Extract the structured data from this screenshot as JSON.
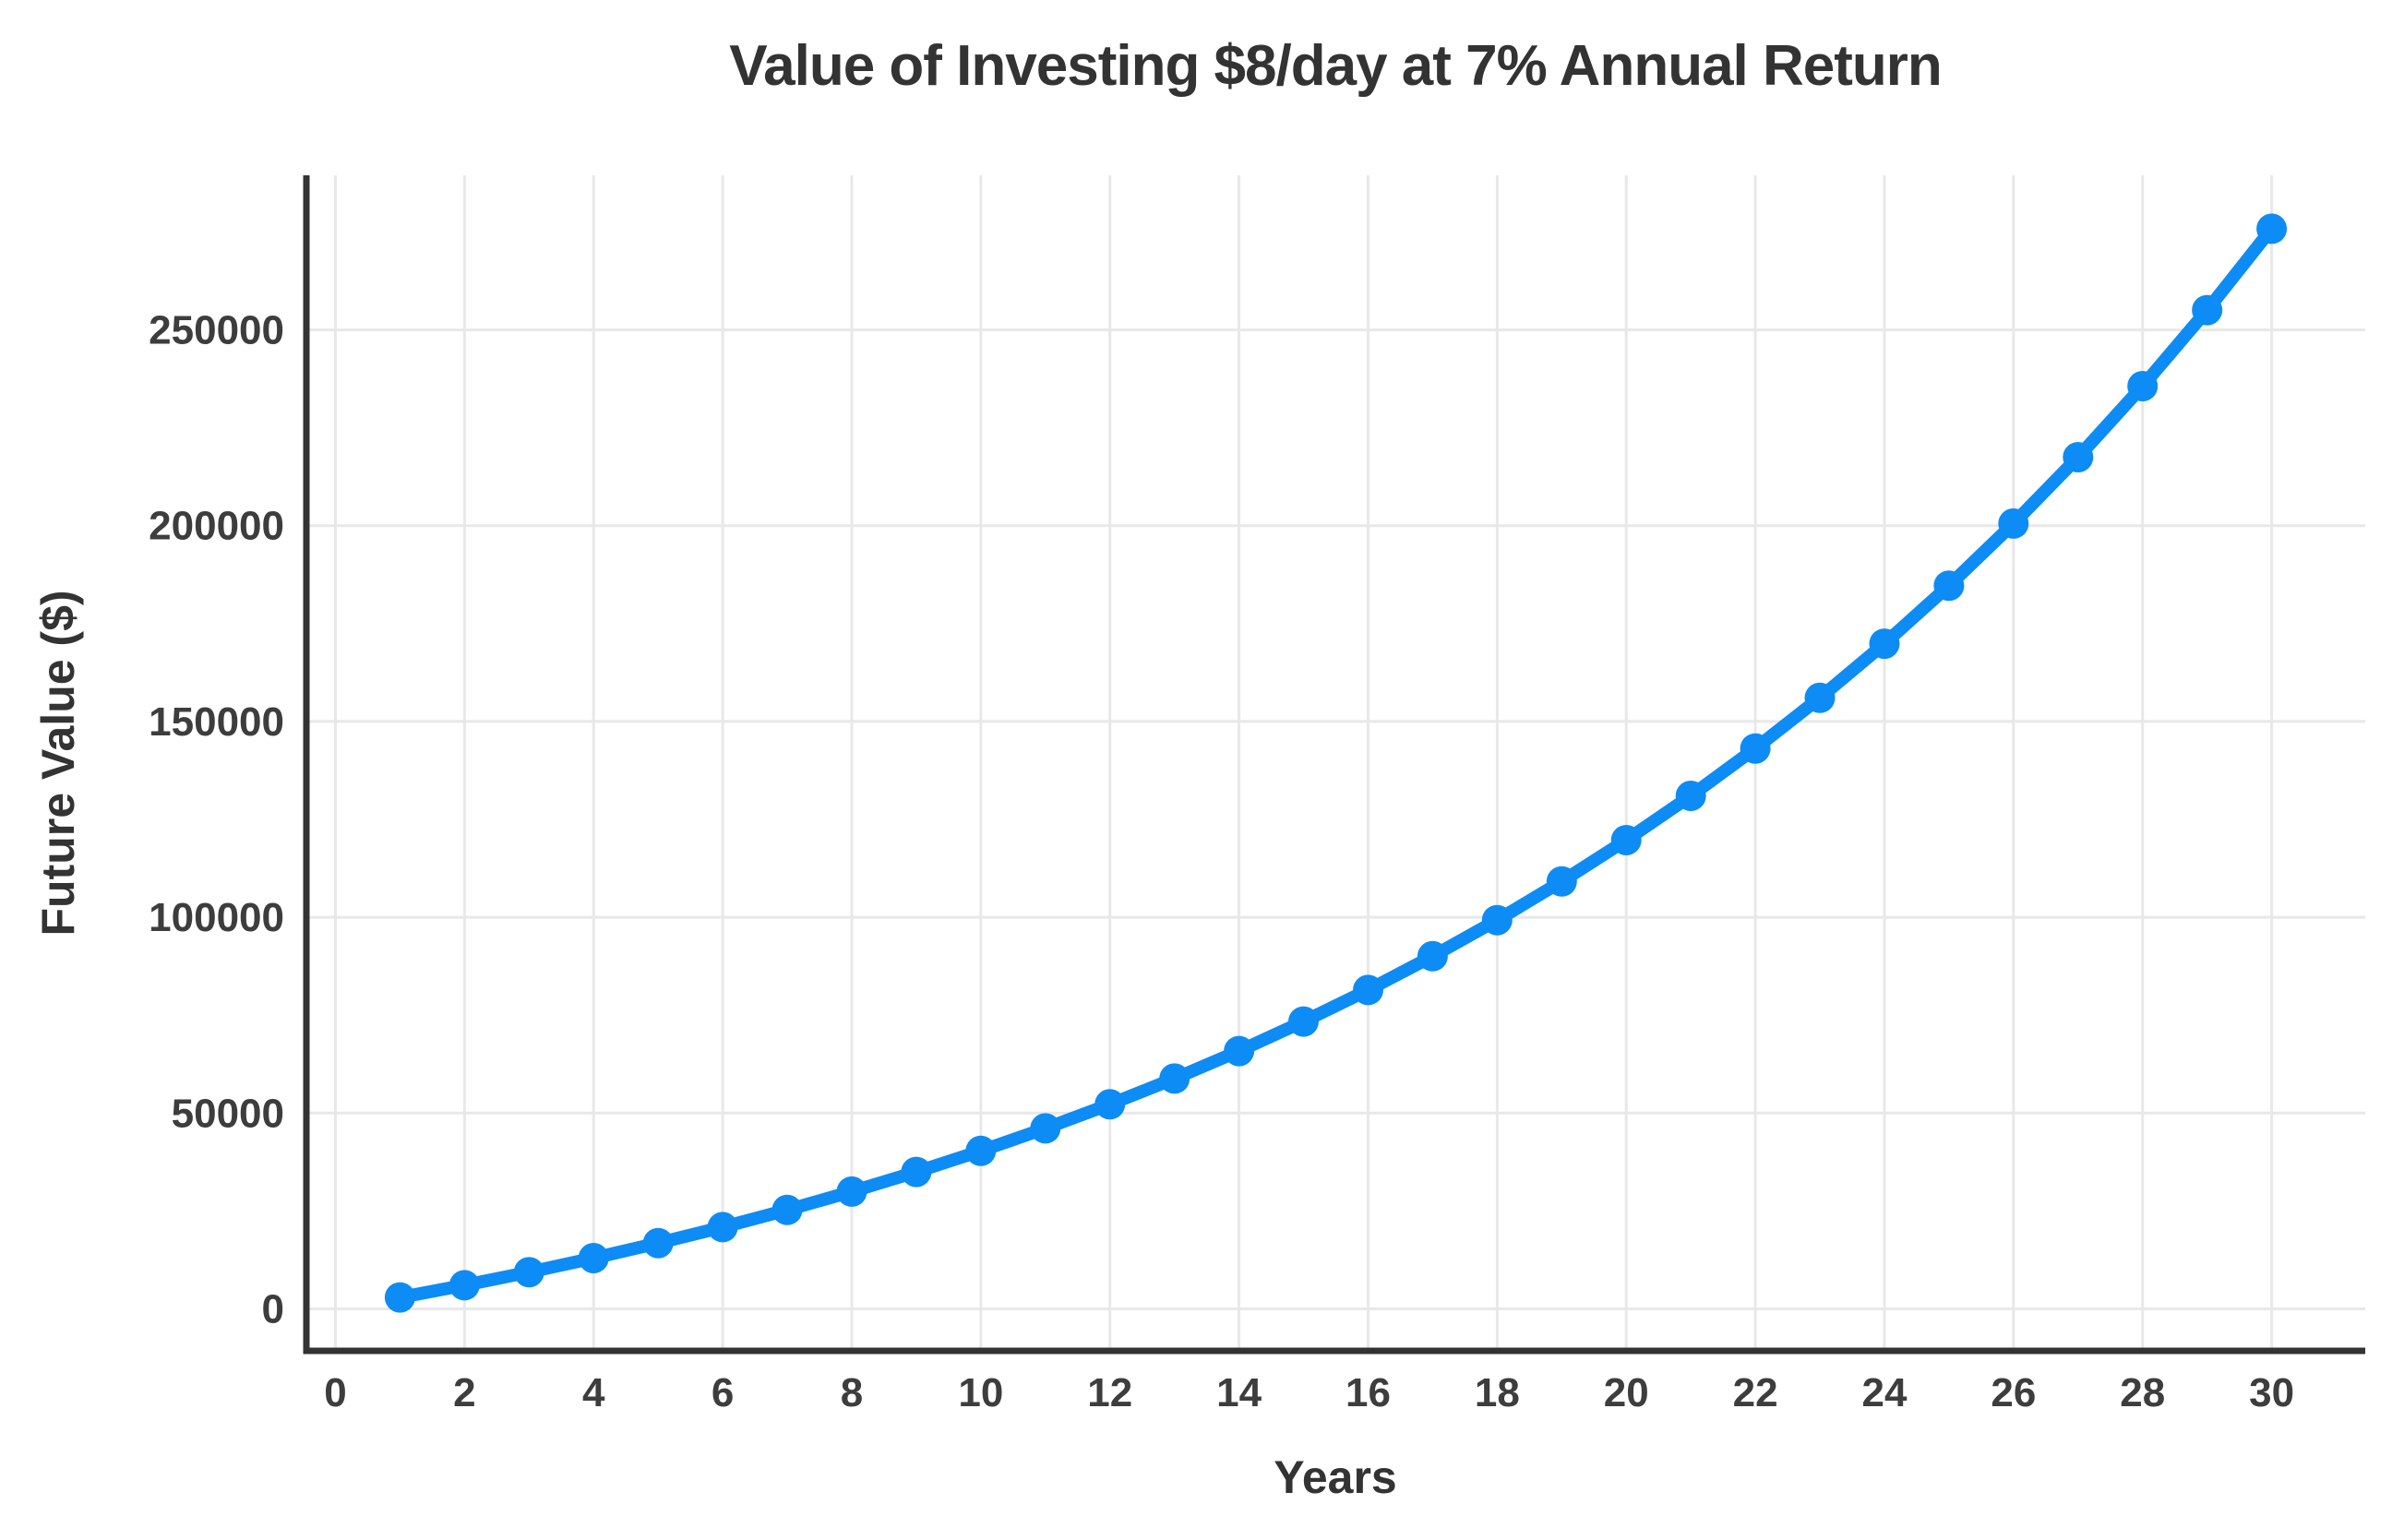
{
  "chart_data": {
    "type": "line",
    "title": "Value of Investing $8/day at 7% Annual Return",
    "xlabel": "Years",
    "ylabel": "Future Value ($)",
    "x": [
      1,
      2,
      3,
      4,
      5,
      6,
      7,
      8,
      9,
      10,
      11,
      12,
      13,
      14,
      15,
      16,
      17,
      18,
      19,
      20,
      21,
      22,
      23,
      24,
      25,
      26,
      27,
      28,
      29,
      30
    ],
    "values": [
      2920,
      6044,
      9388,
      12965,
      16792,
      20888,
      25270,
      29959,
      34976,
      40344,
      46088,
      52234,
      58811,
      65847,
      73377,
      81433,
      90053,
      99277,
      109147,
      119707,
      131006,
      143097,
      156034,
      169876,
      184687,
      200535,
      217493,
      235637,
      255052,
      275825
    ],
    "x_ticks": [
      0,
      2,
      4,
      6,
      8,
      10,
      12,
      14,
      16,
      18,
      20,
      22,
      24,
      26,
      28,
      30
    ],
    "x_tick_labels": [
      "0",
      "2",
      "4",
      "6",
      "8",
      "10",
      "12",
      "14",
      "16",
      "18",
      "20",
      "22",
      "24",
      "26",
      "28",
      "30"
    ],
    "y_ticks": [
      0,
      50000,
      100000,
      150000,
      200000,
      250000
    ],
    "y_tick_labels": [
      "0",
      "50000",
      "100000",
      "150000",
      "200000",
      "250000"
    ],
    "xlim": [
      -0.45,
      31.45
    ],
    "ylim": [
      -10720,
      289470
    ],
    "grid": true,
    "legend": false,
    "marker": "circle",
    "line_color": "#0d8cf5",
    "colors": {
      "background": "#ffffff",
      "text": "#333333",
      "tick_text": "#3d3d3d",
      "grid": "#e8e8e8",
      "axis": "#333333"
    }
  }
}
